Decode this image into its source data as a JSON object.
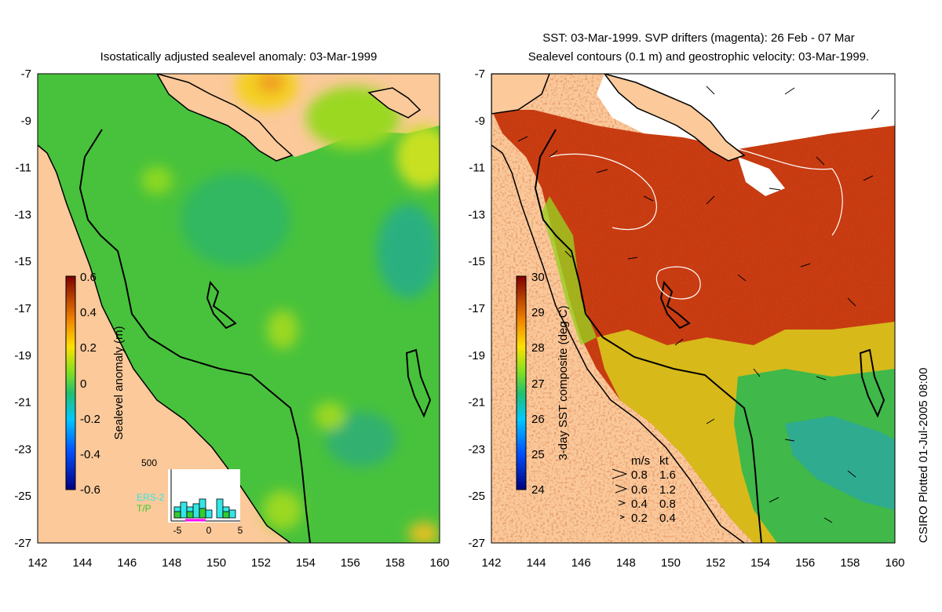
{
  "left_panel": {
    "title": "Isostatically adjusted sealevel anomaly: 03-Mar-1999",
    "colorbar": {
      "label": "Sealevel anomaly (m)",
      "ticks": [
        "0.6",
        "0.4",
        "0.2",
        "0",
        "-0.2",
        "-0.4",
        "-0.6"
      ]
    },
    "histogram": {
      "ymax_label": "500",
      "series": [
        "ERS-2",
        "T/P"
      ],
      "series_colors": [
        "#33e6e6",
        "#33cc33"
      ],
      "xticks": [
        "-5",
        "0",
        "5"
      ]
    }
  },
  "right_panel": {
    "title_line1": "SST: 03-Mar-1999. SVP drifters (magenta): 26 Feb - 07 Mar",
    "title_line2": "Sealevel contours (0.1 m) and geostrophic velocity: 03-Mar-1999.",
    "colorbar": {
      "label": "3-day SST composite (deg C)",
      "ticks": [
        "30",
        "29",
        "28",
        "27",
        "26",
        "25",
        "24"
      ]
    },
    "velocity_legend": {
      "header_ms": "m/s",
      "header_kt": "kt",
      "rows": [
        {
          "ms": "0.8",
          "kt": "1.6"
        },
        {
          "ms": "0.6",
          "kt": "1.2"
        },
        {
          "ms": "0.4",
          "kt": "0.8"
        },
        {
          "ms": "0.2",
          "kt": "0.4"
        }
      ]
    }
  },
  "axes": {
    "lat_ticks": [
      "-7",
      "-9",
      "-11",
      "-13",
      "-15",
      "-17",
      "-19",
      "-21",
      "-23",
      "-25",
      "-27"
    ],
    "lon_ticks": [
      "142",
      "144",
      "146",
      "148",
      "150",
      "152",
      "154",
      "156",
      "158",
      "160"
    ]
  },
  "colors": {
    "land": "#fbc99a",
    "sea_base": "#4cc43c",
    "sst_warm": "#a8200c"
  },
  "stamp": "CSIRO Plotted 01-Jul-2005 08:00"
}
